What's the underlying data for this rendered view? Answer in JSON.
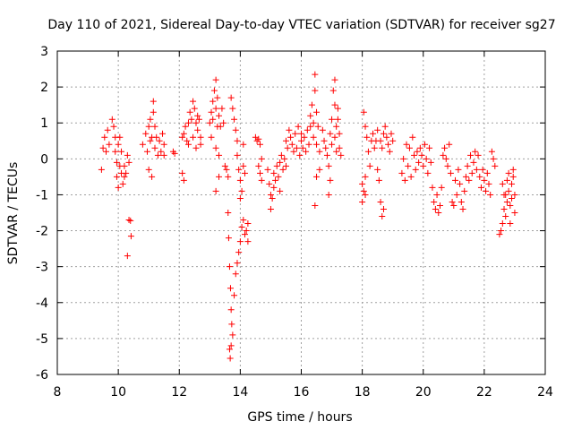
{
  "chart_data": {
    "type": "scatter",
    "title": "Day 110 of 2021, Sidereal Day-to-day VTEC variation (SDTVAR) for receiver sg27",
    "xlabel": "GPS time / hours",
    "ylabel": "SDTVAR / TECUs",
    "xlim": [
      8,
      24
    ],
    "ylim": [
      -6,
      3
    ],
    "xticks": [
      "8",
      "10",
      "12",
      "14",
      "16",
      "18",
      "20",
      "22",
      "24"
    ],
    "yticks": [
      "-6",
      "-5",
      "-4",
      "-3",
      "-2",
      "-1",
      "0",
      "1",
      "2",
      "3"
    ],
    "grid": true,
    "marker": "+",
    "color": "#ff0000",
    "series": [
      {
        "name": "SDTVAR",
        "points": [
          [
            9.45,
            -0.3
          ],
          [
            9.5,
            0.3
          ],
          [
            9.55,
            0.6
          ],
          [
            9.6,
            0.2
          ],
          [
            9.65,
            0.8
          ],
          [
            9.7,
            0.4
          ],
          [
            9.8,
            1.1
          ],
          [
            9.85,
            0.9
          ],
          [
            9.9,
            0.6
          ],
          [
            9.9,
            0.2
          ],
          [
            9.95,
            -0.1
          ],
          [
            9.95,
            -0.5
          ],
          [
            10.0,
            -0.8
          ],
          [
            10.0,
            0.4
          ],
          [
            10.05,
            0.6
          ],
          [
            10.05,
            -0.2
          ],
          [
            10.1,
            0.2
          ],
          [
            10.1,
            -0.4
          ],
          [
            10.15,
            -0.7
          ],
          [
            10.2,
            -0.2
          ],
          [
            10.25,
            -0.4
          ],
          [
            10.3,
            0.1
          ],
          [
            10.35,
            -0.1
          ],
          [
            10.2,
            -0.5
          ],
          [
            10.3,
            -2.7
          ],
          [
            10.35,
            -1.7
          ],
          [
            10.4,
            -1.72
          ],
          [
            10.42,
            -2.15
          ],
          [
            10.8,
            0.4
          ],
          [
            10.9,
            0.7
          ],
          [
            10.95,
            0.2
          ],
          [
            11.0,
            -0.3
          ],
          [
            11.0,
            0.9
          ],
          [
            11.05,
            1.1
          ],
          [
            11.05,
            0.5
          ],
          [
            11.1,
            -0.5
          ],
          [
            11.1,
            0.6
          ],
          [
            11.15,
            1.3
          ],
          [
            11.15,
            1.6
          ],
          [
            11.2,
            0.9
          ],
          [
            11.2,
            0.3
          ],
          [
            11.25,
            0.6
          ],
          [
            11.3,
            0.1
          ],
          [
            11.35,
            0.5
          ],
          [
            11.4,
            0.2
          ],
          [
            11.45,
            0.7
          ],
          [
            11.5,
            0.4
          ],
          [
            11.5,
            0.1
          ],
          [
            11.8,
            0.2
          ],
          [
            11.85,
            0.15
          ],
          [
            12.1,
            0.6
          ],
          [
            12.1,
            -0.4
          ],
          [
            12.15,
            0.7
          ],
          [
            12.15,
            -0.6
          ],
          [
            12.2,
            0.9
          ],
          [
            12.25,
            0.5
          ],
          [
            12.3,
            1.0
          ],
          [
            12.3,
            0.4
          ],
          [
            12.35,
            1.3
          ],
          [
            12.4,
            1.1
          ],
          [
            12.45,
            0.6
          ],
          [
            12.45,
            1.6
          ],
          [
            12.5,
            1.4
          ],
          [
            12.55,
            1.0
          ],
          [
            12.55,
            0.3
          ],
          [
            12.6,
            1.2
          ],
          [
            12.6,
            0.8
          ],
          [
            12.65,
            1.1
          ],
          [
            12.7,
            0.4
          ],
          [
            12.7,
            0.6
          ],
          [
            13.0,
            1.0
          ],
          [
            13.05,
            1.3
          ],
          [
            13.05,
            0.6
          ],
          [
            13.1,
            1.6
          ],
          [
            13.1,
            1.1
          ],
          [
            13.15,
            1.9
          ],
          [
            13.2,
            2.2
          ],
          [
            13.2,
            1.4
          ],
          [
            13.25,
            0.9
          ],
          [
            13.25,
            1.7
          ],
          [
            13.3,
            1.2
          ],
          [
            13.35,
            0.9
          ],
          [
            13.4,
            1.4
          ],
          [
            13.45,
            1.0
          ],
          [
            13.2,
            -0.9
          ],
          [
            13.3,
            -0.5
          ],
          [
            13.3,
            0.1
          ],
          [
            13.2,
            0.3
          ],
          [
            13.5,
            -0.2
          ],
          [
            13.55,
            -0.3
          ],
          [
            13.6,
            -0.5
          ],
          [
            13.7,
            1.7
          ],
          [
            13.75,
            1.4
          ],
          [
            13.8,
            1.1
          ],
          [
            13.85,
            0.8
          ],
          [
            13.9,
            0.5
          ],
          [
            13.9,
            0.1
          ],
          [
            13.95,
            -0.3
          ],
          [
            14.0,
            -0.6
          ],
          [
            14.0,
            -1.1
          ],
          [
            14.05,
            -0.9
          ],
          [
            14.1,
            0.4
          ],
          [
            14.1,
            -0.2
          ],
          [
            14.15,
            -0.4
          ],
          [
            13.6,
            -1.5
          ],
          [
            13.62,
            -2.2
          ],
          [
            13.65,
            -3.0
          ],
          [
            13.68,
            -3.6
          ],
          [
            13.7,
            -4.2
          ],
          [
            13.72,
            -4.6
          ],
          [
            13.7,
            -5.2
          ],
          [
            13.65,
            -5.3
          ],
          [
            13.67,
            -5.55
          ],
          [
            13.75,
            -4.9
          ],
          [
            13.8,
            -3.8
          ],
          [
            13.85,
            -3.2
          ],
          [
            13.9,
            -2.9
          ],
          [
            13.95,
            -2.6
          ],
          [
            14.0,
            -2.3
          ],
          [
            14.05,
            -1.9
          ],
          [
            14.1,
            -1.7
          ],
          [
            14.15,
            -2.1
          ],
          [
            14.2,
            -2.0
          ],
          [
            14.25,
            -1.8
          ],
          [
            14.25,
            -2.3
          ],
          [
            14.5,
            0.6
          ],
          [
            14.55,
            0.5
          ],
          [
            14.6,
            0.55
          ],
          [
            14.65,
            0.4
          ],
          [
            14.7,
            0.0
          ],
          [
            14.6,
            -0.2
          ],
          [
            14.65,
            -0.4
          ],
          [
            14.7,
            -0.6
          ],
          [
            14.9,
            -0.3
          ],
          [
            14.95,
            -0.7
          ],
          [
            15.0,
            -1.0
          ],
          [
            15.0,
            -1.4
          ],
          [
            15.05,
            -1.1
          ],
          [
            15.1,
            -0.8
          ],
          [
            15.1,
            -0.4
          ],
          [
            15.15,
            -0.6
          ],
          [
            15.2,
            -0.2
          ],
          [
            15.25,
            -0.5
          ],
          [
            15.3,
            -0.1
          ],
          [
            15.3,
            -0.9
          ],
          [
            15.35,
            0.1
          ],
          [
            15.4,
            -0.3
          ],
          [
            15.45,
            0.0
          ],
          [
            15.5,
            -0.2
          ],
          [
            15.5,
            0.5
          ],
          [
            15.55,
            0.3
          ],
          [
            15.6,
            0.8
          ],
          [
            15.65,
            0.6
          ],
          [
            15.7,
            0.4
          ],
          [
            15.75,
            0.2
          ],
          [
            15.8,
            0.7
          ],
          [
            15.85,
            0.3
          ],
          [
            15.9,
            0.9
          ],
          [
            15.95,
            0.1
          ],
          [
            16.0,
            0.5
          ],
          [
            16.0,
            0.7
          ],
          [
            16.05,
            0.3
          ],
          [
            16.1,
            0.6
          ],
          [
            16.15,
            0.2
          ],
          [
            16.2,
            0.8
          ],
          [
            16.25,
            0.4
          ],
          [
            16.3,
            1.2
          ],
          [
            16.3,
            0.9
          ],
          [
            16.35,
            1.5
          ],
          [
            16.4,
            1.0
          ],
          [
            16.4,
            0.6
          ],
          [
            16.45,
            2.35
          ],
          [
            16.45,
            1.9
          ],
          [
            16.5,
            1.3
          ],
          [
            16.5,
            0.4
          ],
          [
            16.55,
            0.9
          ],
          [
            16.6,
            0.2
          ],
          [
            16.6,
            -0.3
          ],
          [
            16.45,
            -1.3
          ],
          [
            16.5,
            -0.5
          ],
          [
            16.7,
            0.8
          ],
          [
            16.75,
            0.5
          ],
          [
            16.8,
            0.3
          ],
          [
            16.85,
            0.1
          ],
          [
            16.9,
            -0.2
          ],
          [
            16.95,
            0.7
          ],
          [
            16.95,
            -0.6
          ],
          [
            16.9,
            -1.0
          ],
          [
            17.0,
            1.1
          ],
          [
            17.0,
            0.4
          ],
          [
            17.05,
            1.9
          ],
          [
            17.1,
            2.2
          ],
          [
            17.1,
            1.5
          ],
          [
            17.1,
            0.6
          ],
          [
            17.15,
            0.9
          ],
          [
            17.15,
            0.2
          ],
          [
            17.2,
            1.4
          ],
          [
            17.2,
            1.1
          ],
          [
            17.25,
            0.7
          ],
          [
            17.25,
            0.3
          ],
          [
            17.3,
            0.1
          ],
          [
            18.0,
            -0.7
          ],
          [
            18.0,
            -1.2
          ],
          [
            18.05,
            -0.9
          ],
          [
            18.1,
            -1.0
          ],
          [
            18.1,
            -0.5
          ],
          [
            18.05,
            1.3
          ],
          [
            18.1,
            0.9
          ],
          [
            18.15,
            0.6
          ],
          [
            18.2,
            0.2
          ],
          [
            18.25,
            -0.2
          ],
          [
            18.3,
            0.5
          ],
          [
            18.35,
            0.7
          ],
          [
            18.4,
            0.3
          ],
          [
            18.45,
            0.5
          ],
          [
            18.5,
            -0.3
          ],
          [
            18.55,
            -0.6
          ],
          [
            18.6,
            -1.2
          ],
          [
            18.65,
            -1.6
          ],
          [
            18.7,
            -1.4
          ],
          [
            18.5,
            0.8
          ],
          [
            18.6,
            0.5
          ],
          [
            18.65,
            0.3
          ],
          [
            18.7,
            0.7
          ],
          [
            18.75,
            0.9
          ],
          [
            18.8,
            0.6
          ],
          [
            18.85,
            0.4
          ],
          [
            18.9,
            0.2
          ],
          [
            18.95,
            0.7
          ],
          [
            19.0,
            0.5
          ],
          [
            19.3,
            -0.4
          ],
          [
            19.35,
            0.0
          ],
          [
            19.4,
            -0.6
          ],
          [
            19.45,
            0.4
          ],
          [
            19.5,
            -0.2
          ],
          [
            19.55,
            0.3
          ],
          [
            19.6,
            -0.5
          ],
          [
            19.65,
            0.6
          ],
          [
            19.7,
            0.1
          ],
          [
            19.75,
            -0.3
          ],
          [
            19.8,
            0.2
          ],
          [
            19.85,
            -0.1
          ],
          [
            19.9,
            0.3
          ],
          [
            19.95,
            0.1
          ],
          [
            20.0,
            -0.2
          ],
          [
            20.05,
            0.4
          ],
          [
            20.1,
            0.0
          ],
          [
            20.15,
            -0.4
          ],
          [
            20.2,
            0.3
          ],
          [
            20.25,
            -0.1
          ],
          [
            20.3,
            -0.8
          ],
          [
            20.35,
            -1.2
          ],
          [
            20.4,
            -1.4
          ],
          [
            20.45,
            -1.0
          ],
          [
            20.5,
            -1.5
          ],
          [
            20.55,
            -1.3
          ],
          [
            20.6,
            -0.8
          ],
          [
            20.65,
            0.1
          ],
          [
            20.7,
            0.3
          ],
          [
            20.75,
            0.0
          ],
          [
            20.8,
            -0.2
          ],
          [
            20.85,
            0.4
          ],
          [
            20.9,
            -0.4
          ],
          [
            20.95,
            -1.2
          ],
          [
            21.0,
            -1.3
          ],
          [
            21.05,
            -0.6
          ],
          [
            21.1,
            -1.0
          ],
          [
            21.15,
            -0.3
          ],
          [
            21.2,
            -0.7
          ],
          [
            21.25,
            -1.2
          ],
          [
            21.3,
            -1.4
          ],
          [
            21.35,
            -0.9
          ],
          [
            21.4,
            -0.5
          ],
          [
            21.45,
            -0.2
          ],
          [
            21.5,
            -0.6
          ],
          [
            21.55,
            0.1
          ],
          [
            21.6,
            -0.4
          ],
          [
            21.65,
            -0.1
          ],
          [
            21.7,
            0.2
          ],
          [
            21.75,
            -0.3
          ],
          [
            21.8,
            0.1
          ],
          [
            21.85,
            -0.5
          ],
          [
            21.9,
            -0.8
          ],
          [
            21.95,
            -0.3
          ],
          [
            22.0,
            -0.6
          ],
          [
            22.05,
            -0.9
          ],
          [
            22.1,
            -0.4
          ],
          [
            22.15,
            -0.7
          ],
          [
            22.2,
            -1.0
          ],
          [
            22.25,
            0.2
          ],
          [
            22.3,
            0.0
          ],
          [
            22.35,
            -0.2
          ],
          [
            22.5,
            -2.1
          ],
          [
            22.55,
            -2.0
          ],
          [
            22.6,
            -1.8
          ],
          [
            22.65,
            -1.4
          ],
          [
            22.7,
            -1.6
          ],
          [
            22.7,
            -1.0
          ],
          [
            22.75,
            -1.2
          ],
          [
            22.75,
            -0.6
          ],
          [
            22.8,
            -0.4
          ],
          [
            22.8,
            -0.9
          ],
          [
            22.85,
            -1.3
          ],
          [
            22.85,
            -1.8
          ],
          [
            22.9,
            -1.1
          ],
          [
            22.9,
            -0.7
          ],
          [
            22.95,
            -0.5
          ],
          [
            23.0,
            -1.0
          ],
          [
            23.0,
            -1.5
          ],
          [
            22.95,
            -0.3
          ],
          [
            22.6,
            -0.7
          ],
          [
            22.65,
            -1.0
          ]
        ]
      }
    ]
  }
}
